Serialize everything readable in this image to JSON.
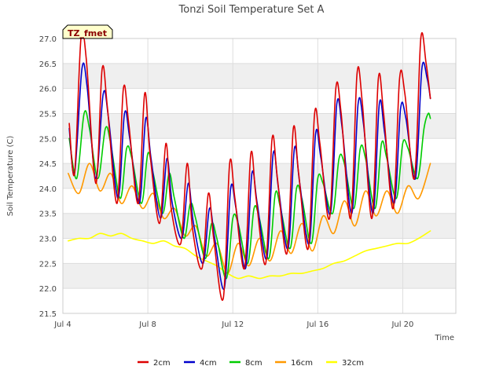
{
  "chart_data": {
    "type": "line",
    "title": "Tonzi Soil Temperature Set A",
    "xlabel": "Time",
    "ylabel": "Soil Temperature (C)",
    "ylim": [
      21.5,
      27.0
    ],
    "y_ticks": [
      21.5,
      22.0,
      22.5,
      23.0,
      23.5,
      24.0,
      24.5,
      25.0,
      25.5,
      26.0,
      26.5,
      27.0
    ],
    "y_tick_labels": [
      "21.5",
      "22.0",
      "22.5",
      "23.0",
      "23.5",
      "24.0",
      "24.5",
      "25.0",
      "25.5",
      "26.0",
      "26.5",
      "27.0"
    ],
    "xlim_days": [
      4.0,
      22.5
    ],
    "x_ticks": [
      4,
      8,
      12,
      16,
      20
    ],
    "x_tick_labels": [
      "Jul 4",
      "Jul 8",
      "Jul 12",
      "Jul 16",
      "Jul 20"
    ],
    "badge": "TZ_fmet",
    "grid": true,
    "legend_position": "bottom",
    "colors": {
      "band": "#efefef",
      "grid": "#dddddd",
      "badge_fill": "#ffffcc",
      "badge_text": "#8b0000"
    },
    "series": [
      {
        "name": "2cm",
        "color": "#dd0000",
        "x": [
          4.3,
          4.55,
          4.85,
          5.1,
          5.55,
          5.85,
          6.1,
          6.55,
          6.85,
          7.1,
          7.55,
          7.85,
          8.1,
          8.55,
          8.85,
          9.1,
          9.55,
          9.85,
          10.1,
          10.55,
          10.85,
          11.1,
          11.55,
          11.85,
          12.1,
          12.55,
          12.85,
          13.1,
          13.55,
          13.85,
          14.1,
          14.55,
          14.85,
          15.1,
          15.55,
          15.85,
          16.1,
          16.55,
          16.85,
          17.1,
          17.55,
          17.85,
          18.1,
          18.55,
          18.85,
          19.1,
          19.55,
          19.85,
          20.1,
          20.55,
          20.85,
          21.1,
          21.3
        ],
        "y": [
          25.3,
          24.3,
          27.0,
          26.6,
          24.1,
          26.4,
          25.6,
          23.7,
          26.0,
          25.3,
          23.7,
          25.9,
          24.7,
          23.3,
          24.9,
          23.6,
          22.9,
          24.5,
          23.2,
          22.4,
          23.9,
          23.0,
          21.8,
          24.5,
          23.8,
          22.4,
          24.7,
          23.8,
          22.5,
          25.0,
          24.2,
          22.7,
          25.2,
          24.3,
          22.8,
          25.5,
          24.9,
          23.4,
          26.0,
          25.5,
          23.4,
          26.3,
          25.7,
          23.4,
          26.2,
          25.5,
          23.6,
          26.2,
          25.9,
          24.2,
          27.0,
          26.5,
          25.8
        ]
      },
      {
        "name": "4cm",
        "color": "#0000cc",
        "x": [
          4.3,
          4.55,
          4.9,
          5.15,
          5.55,
          5.9,
          6.15,
          6.6,
          6.9,
          7.15,
          7.6,
          7.9,
          8.15,
          8.6,
          8.9,
          9.15,
          9.6,
          9.9,
          10.15,
          10.6,
          10.9,
          11.15,
          11.6,
          11.9,
          12.15,
          12.6,
          12.9,
          13.15,
          13.6,
          13.9,
          14.15,
          14.6,
          14.9,
          15.15,
          15.6,
          15.9,
          16.15,
          16.6,
          16.9,
          17.15,
          17.6,
          17.9,
          18.15,
          18.6,
          18.9,
          19.15,
          19.6,
          19.9,
          20.15,
          20.6,
          20.9,
          21.15,
          21.3
        ],
        "y": [
          25.2,
          24.3,
          26.4,
          26.0,
          24.2,
          25.9,
          25.4,
          23.8,
          25.5,
          25.0,
          23.7,
          25.4,
          24.6,
          23.4,
          24.6,
          23.7,
          23.0,
          24.1,
          23.3,
          22.5,
          23.6,
          23.0,
          22.0,
          24.0,
          23.6,
          22.4,
          24.3,
          23.7,
          22.6,
          24.7,
          24.0,
          22.8,
          24.8,
          24.1,
          22.9,
          25.1,
          24.6,
          23.5,
          25.7,
          25.2,
          23.5,
          25.7,
          25.3,
          23.5,
          25.7,
          25.1,
          23.7,
          25.6,
          25.4,
          24.2,
          26.4,
          26.2,
          25.8
        ]
      },
      {
        "name": "8cm",
        "color": "#00cc00",
        "x": [
          4.3,
          4.65,
          5.0,
          5.25,
          5.65,
          6.0,
          6.25,
          6.7,
          7.0,
          7.25,
          7.7,
          8.0,
          8.25,
          8.7,
          9.0,
          9.25,
          9.7,
          10.0,
          10.25,
          10.7,
          11.0,
          11.25,
          11.7,
          12.0,
          12.25,
          12.7,
          13.0,
          13.25,
          13.7,
          14.0,
          14.25,
          14.7,
          15.0,
          15.25,
          15.7,
          16.0,
          16.25,
          16.7,
          17.0,
          17.25,
          17.7,
          18.0,
          18.25,
          18.7,
          19.0,
          19.25,
          19.7,
          20.0,
          20.25,
          20.7,
          21.0,
          21.2,
          21.3
        ],
        "y": [
          25.0,
          24.2,
          25.5,
          25.2,
          24.2,
          25.2,
          24.9,
          23.8,
          24.8,
          24.6,
          23.7,
          24.7,
          24.3,
          23.5,
          24.3,
          23.8,
          23.0,
          23.7,
          23.4,
          22.6,
          23.3,
          23.0,
          22.2,
          23.4,
          23.3,
          22.5,
          23.6,
          23.4,
          22.6,
          23.9,
          23.6,
          22.8,
          24.0,
          23.8,
          22.9,
          24.2,
          24.1,
          23.5,
          24.6,
          24.5,
          23.6,
          24.8,
          24.6,
          23.6,
          24.9,
          24.6,
          23.8,
          24.9,
          24.8,
          24.2,
          25.2,
          25.5,
          25.4
        ]
      },
      {
        "name": "16cm",
        "color": "#ff9900",
        "x": [
          4.25,
          4.75,
          5.25,
          5.75,
          6.25,
          6.75,
          7.25,
          7.75,
          8.25,
          8.75,
          9.25,
          9.75,
          10.25,
          10.75,
          11.25,
          11.75,
          12.25,
          12.75,
          13.25,
          13.75,
          14.25,
          14.75,
          15.25,
          15.75,
          16.25,
          16.75,
          17.25,
          17.75,
          18.25,
          18.75,
          19.25,
          19.75,
          20.25,
          20.75,
          21.3
        ],
        "y": [
          24.3,
          23.9,
          24.5,
          23.95,
          24.3,
          23.7,
          24.05,
          23.6,
          23.9,
          23.4,
          23.6,
          23.05,
          23.25,
          22.65,
          22.9,
          22.3,
          22.9,
          22.45,
          23.0,
          22.55,
          23.15,
          22.7,
          23.3,
          22.75,
          23.45,
          23.1,
          23.75,
          23.25,
          23.95,
          23.45,
          23.95,
          23.5,
          24.05,
          23.8,
          24.5
        ]
      },
      {
        "name": "32cm",
        "color": "#ffff00",
        "x": [
          4.25,
          4.75,
          5.25,
          5.75,
          6.25,
          6.75,
          7.25,
          7.75,
          8.25,
          8.75,
          9.25,
          9.75,
          10.25,
          10.75,
          11.25,
          11.75,
          12.25,
          12.75,
          13.25,
          13.75,
          14.25,
          14.75,
          15.25,
          15.75,
          16.25,
          16.75,
          17.25,
          17.75,
          18.25,
          18.75,
          19.25,
          19.75,
          20.25,
          20.75,
          21.3
        ],
        "y": [
          22.95,
          23.0,
          23.0,
          23.1,
          23.05,
          23.1,
          23.0,
          22.95,
          22.9,
          22.95,
          22.85,
          22.8,
          22.65,
          22.55,
          22.45,
          22.3,
          22.2,
          22.25,
          22.2,
          22.25,
          22.25,
          22.3,
          22.3,
          22.35,
          22.4,
          22.5,
          22.55,
          22.65,
          22.75,
          22.8,
          22.85,
          22.9,
          22.9,
          23.0,
          23.15
        ]
      }
    ]
  }
}
